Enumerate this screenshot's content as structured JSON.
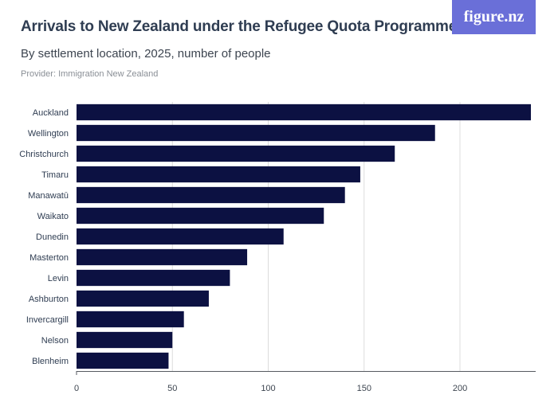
{
  "header": {
    "title": "Arrivals to New Zealand under the Refugee Quota Programme",
    "subtitle": "By settlement location, 2025, number of people",
    "provider": "Provider: Immigration New Zealand",
    "logo_text": "figure.nz"
  },
  "colors": {
    "bar": "#0c1142",
    "grid": "#dcdcdc",
    "logo_bg": "#6a6fd8"
  },
  "chart_data": {
    "type": "bar",
    "orientation": "horizontal",
    "categories": [
      "Auckland",
      "Wellington",
      "Christchurch",
      "Timaru",
      "Manawatū",
      "Waikato",
      "Dunedin",
      "Masterton",
      "Levin",
      "Ashburton",
      "Invercargill",
      "Nelson",
      "Blenheim"
    ],
    "values": [
      237,
      187,
      166,
      148,
      140,
      129,
      108,
      89,
      80,
      69,
      56,
      50,
      48
    ],
    "xlabel": "",
    "ylabel": "",
    "xlim": [
      0,
      237
    ],
    "xticks": [
      "0",
      "50",
      "100",
      "150",
      "200"
    ],
    "grid": "vertical"
  }
}
